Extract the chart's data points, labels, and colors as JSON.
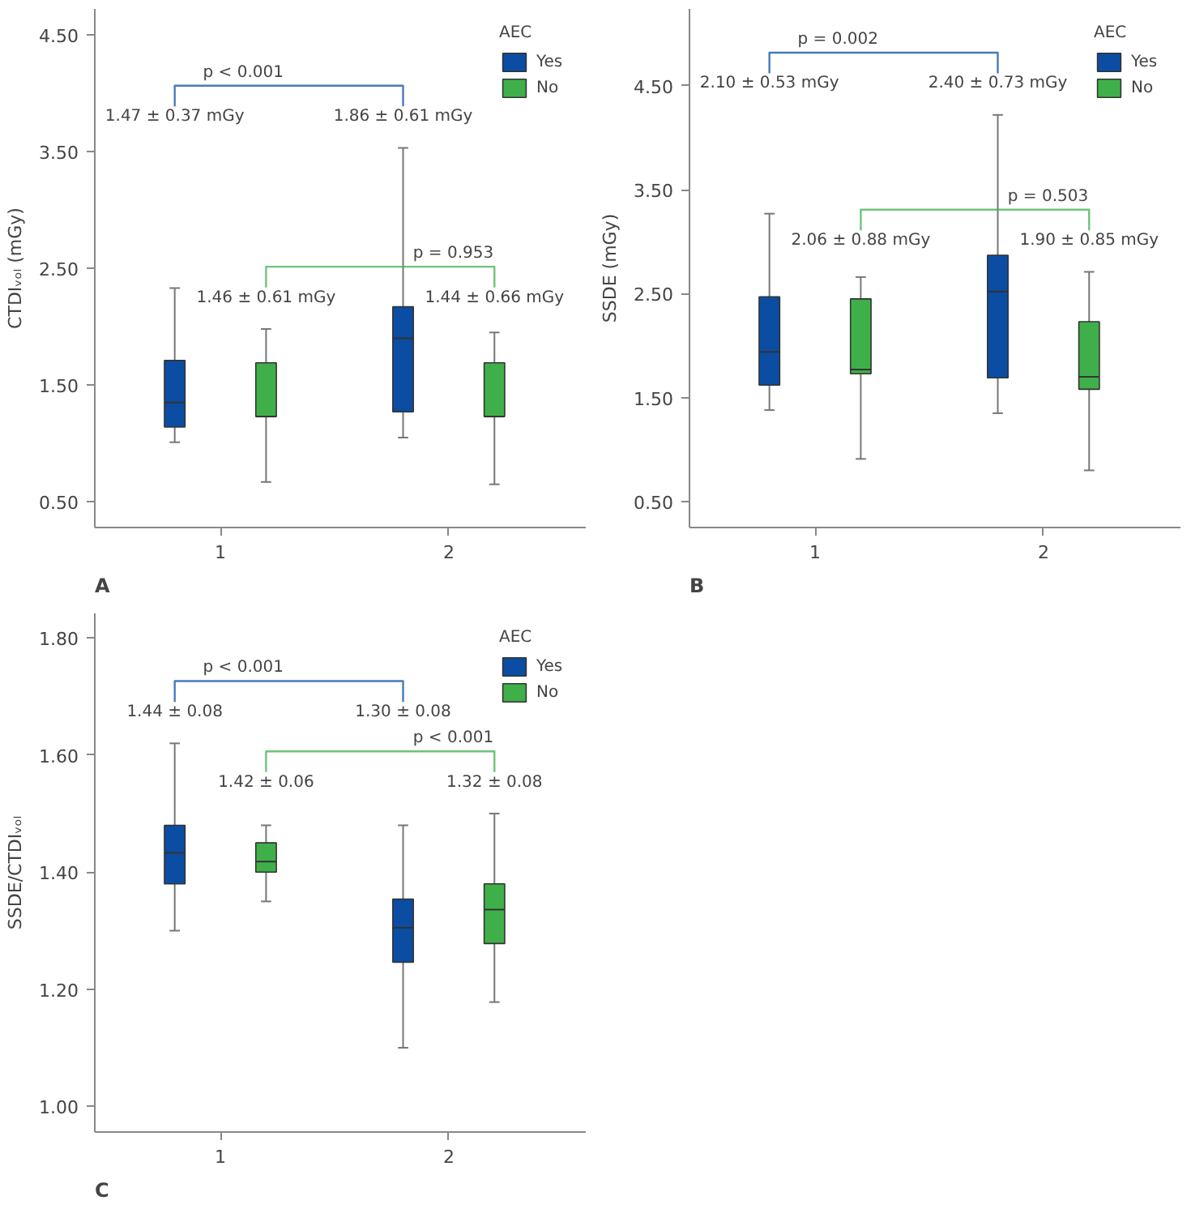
{
  "chart_data": [
    {
      "type": "box",
      "title": "A",
      "ylabel": "CTDIᵥₒₗ (mGy)",
      "legend_title": "AEC",
      "legend": "top right",
      "grid": false,
      "categories": [
        "1",
        "2"
      ],
      "ylim": [
        0.28,
        4.72
      ],
      "yticks": [
        {
          "value": 0.5,
          "label": "0.50"
        },
        {
          "value": 1.5,
          "label": "1.50"
        },
        {
          "value": 2.5,
          "label": "2.50"
        },
        {
          "value": 3.5,
          "label": "3.50"
        },
        {
          "value": 4.5,
          "label": "4.50"
        }
      ],
      "series": [
        {
          "name": "Yes",
          "color": "#0b4da2",
          "boxes": [
            {
              "low": 1.01,
              "q1": 1.14,
              "median": 1.35,
              "q3": 1.71,
              "high": 2.33
            },
            {
              "low": 1.05,
              "q1": 1.27,
              "median": 1.9,
              "q3": 2.17,
              "high": 3.53
            }
          ]
        },
        {
          "name": "No",
          "color": "#3fb049",
          "boxes": [
            {
              "low": 0.67,
              "q1": 1.23,
              "median": 1.23,
              "q3": 1.69,
              "high": 1.98
            },
            {
              "low": 0.65,
              "q1": 1.23,
              "median": 1.23,
              "q3": 1.69,
              "high": 1.95
            }
          ]
        }
      ],
      "annotations": [
        "p < 0.001",
        "1.47 ± 0.37 mGy",
        "1.86 ± 0.61 mGy",
        "p = 0.953",
        "1.46 ± 0.61 mGy",
        "1.44 ± 0.66 mGy"
      ]
    },
    {
      "type": "box",
      "title": "B",
      "ylabel": "SSDE (mGy)",
      "legend_title": "AEC",
      "legend": "top right",
      "grid": false,
      "categories": [
        "1",
        "2"
      ],
      "ylim": [
        0.25,
        5.24
      ],
      "yticks": [
        {
          "value": 0.5,
          "label": "0.50"
        },
        {
          "value": 1.5,
          "label": "1.50"
        },
        {
          "value": 2.5,
          "label": "2.50"
        },
        {
          "value": 3.5,
          "label": "3.50"
        },
        {
          "value": 4.5,
          "label": "4.50"
        }
      ],
      "series": [
        {
          "name": "Yes",
          "color": "#0b4da2",
          "boxes": [
            {
              "low": 1.38,
              "q1": 1.62,
              "median": 1.94,
              "q3": 2.47,
              "high": 3.27
            },
            {
              "low": 1.35,
              "q1": 1.69,
              "median": 2.52,
              "q3": 2.87,
              "high": 4.22
            }
          ]
        },
        {
          "name": "No",
          "color": "#3fb049",
          "boxes": [
            {
              "low": 0.91,
              "q1": 1.73,
              "median": 1.77,
              "q3": 2.45,
              "high": 2.66
            },
            {
              "low": 0.8,
              "q1": 1.58,
              "median": 1.7,
              "q3": 2.23,
              "high": 2.71
            }
          ]
        }
      ],
      "annotations": [
        "p = 0.002",
        "2.10 ± 0.53 mGy",
        "2.40 ± 0.73 mGy",
        "p = 0.503",
        "2.06 ± 0.88 mGy",
        "1.90 ± 0.85 mGy"
      ]
    },
    {
      "type": "box",
      "title": "C",
      "ylabel": "SSDE/CTDIᵥₒₗ",
      "legend_title": "AEC",
      "legend": "top right",
      "grid": false,
      "categories": [
        "1",
        "2"
      ],
      "ylim": [
        0.956,
        1.842
      ],
      "yticks": [
        {
          "value": 1.0,
          "label": "1.00"
        },
        {
          "value": 1.2,
          "label": "1.20"
        },
        {
          "value": 1.4,
          "label": "1.40"
        },
        {
          "value": 1.6,
          "label": "1.60"
        },
        {
          "value": 1.8,
          "label": "1.80"
        }
      ],
      "series": [
        {
          "name": "Yes",
          "color": "#0b4da2",
          "boxes": [
            {
              "low": 1.3,
              "q1": 1.38,
              "median": 1.433,
              "q3": 1.48,
              "high": 1.62
            },
            {
              "low": 1.1,
              "q1": 1.246,
              "median": 1.305,
              "q3": 1.354,
              "high": 1.48
            }
          ]
        },
        {
          "name": "No",
          "color": "#3fb049",
          "boxes": [
            {
              "low": 1.35,
              "q1": 1.4,
              "median": 1.418,
              "q3": 1.45,
              "high": 1.48
            },
            {
              "low": 1.178,
              "q1": 1.278,
              "median": 1.336,
              "q3": 1.38,
              "high": 1.5
            }
          ]
        }
      ],
      "annotations": [
        "p < 0.001",
        "1.44 ± 0.08",
        "1.30 ± 0.08",
        "p < 0.001",
        "1.42 ± 0.06",
        "1.32 ± 0.08"
      ]
    }
  ]
}
